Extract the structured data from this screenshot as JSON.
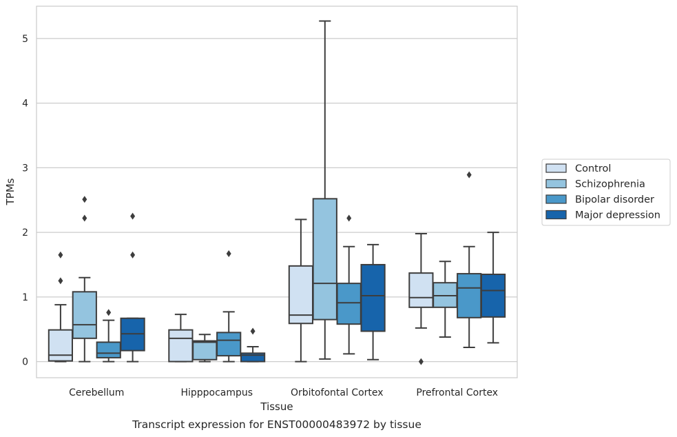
{
  "chart_data": {
    "type": "box",
    "title": "",
    "caption": "Transcript expression for ENST00000483972 by tissue",
    "xlabel": "Tissue",
    "ylabel": "TPMs",
    "ylim": [
      -0.25,
      5.5
    ],
    "yticks": [
      0,
      1,
      2,
      3,
      4,
      5
    ],
    "grid": true,
    "legend_position": "right",
    "categories": [
      "Cerebellum",
      "Hipppocampus",
      "Orbitofontal Cortex",
      "Prefrontal Cortex"
    ],
    "series": [
      {
        "name": "Control",
        "color": "#d0e1f2",
        "boxes": [
          {
            "whislo": 0.0,
            "q1": 0.01,
            "med": 0.1,
            "q3": 0.49,
            "whishi": 0.88,
            "fliers": [
              1.25,
              1.65
            ]
          },
          {
            "whislo": 0.0,
            "q1": 0.0,
            "med": 0.36,
            "q3": 0.49,
            "whishi": 0.73,
            "fliers": []
          },
          {
            "whislo": 0.0,
            "q1": 0.59,
            "med": 0.72,
            "q3": 1.48,
            "whishi": 2.2,
            "fliers": []
          },
          {
            "whislo": 0.52,
            "q1": 0.84,
            "med": 0.99,
            "q3": 1.37,
            "whishi": 1.98,
            "fliers": [
              0.0
            ]
          }
        ]
      },
      {
        "name": "Schizophrenia",
        "color": "#94c4df",
        "boxes": [
          {
            "whislo": 0.0,
            "q1": 0.36,
            "med": 0.57,
            "q3": 1.08,
            "whishi": 1.3,
            "fliers": [
              2.22,
              2.51
            ]
          },
          {
            "whislo": 0.0,
            "q1": 0.03,
            "med": 0.3,
            "q3": 0.32,
            "whishi": 0.42,
            "fliers": []
          },
          {
            "whislo": 0.04,
            "q1": 0.65,
            "med": 1.21,
            "q3": 2.52,
            "whishi": 5.27,
            "fliers": []
          },
          {
            "whislo": 0.38,
            "q1": 0.84,
            "med": 1.02,
            "q3": 1.22,
            "whishi": 1.55,
            "fliers": []
          }
        ]
      },
      {
        "name": "Bipolar disorder",
        "color": "#4a98c9",
        "boxes": [
          {
            "whislo": 0.0,
            "q1": 0.06,
            "med": 0.13,
            "q3": 0.3,
            "whishi": 0.64,
            "fliers": [
              0.76
            ]
          },
          {
            "whislo": 0.0,
            "q1": 0.09,
            "med": 0.33,
            "q3": 0.45,
            "whishi": 0.77,
            "fliers": [
              1.67
            ]
          },
          {
            "whislo": 0.12,
            "q1": 0.58,
            "med": 0.91,
            "q3": 1.21,
            "whishi": 1.78,
            "fliers": [
              2.22
            ]
          },
          {
            "whislo": 0.22,
            "q1": 0.68,
            "med": 1.14,
            "q3": 1.36,
            "whishi": 1.78,
            "fliers": [
              2.89
            ]
          }
        ]
      },
      {
        "name": "Major depression",
        "color": "#1764ab",
        "boxes": [
          {
            "whislo": 0.0,
            "q1": 0.17,
            "med": 0.43,
            "q3": 0.67,
            "whishi": 0.67,
            "fliers": [
              1.65,
              2.25
            ]
          },
          {
            "whislo": 0.0,
            "q1": 0.0,
            "med": 0.1,
            "q3": 0.13,
            "whishi": 0.23,
            "fliers": [
              0.47
            ]
          },
          {
            "whislo": 0.03,
            "q1": 0.47,
            "med": 1.02,
            "q3": 1.5,
            "whishi": 1.81,
            "fliers": []
          },
          {
            "whislo": 0.29,
            "q1": 0.69,
            "med": 1.1,
            "q3": 1.35,
            "whishi": 2.0,
            "fliers": []
          }
        ]
      }
    ]
  }
}
